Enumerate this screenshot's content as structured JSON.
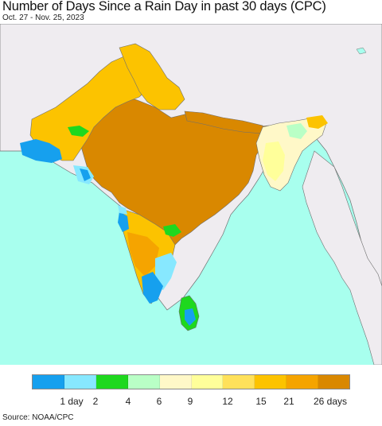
{
  "header": {
    "title": "Number of Days Since a Rain Day in past 30 days (CPC)",
    "subtitle": "Oct. 27 - Nov. 25, 2023"
  },
  "map": {
    "colors": {
      "ocean": "#a8ffee",
      "land_outside": "#efecf0",
      "darkest": "#d98800",
      "orange": "#f5a400",
      "amber": "#fcc300",
      "yellow": "#ffe15a",
      "light_yellow": "#ffff9a",
      "cream": "#fff8c8",
      "pale_green": "#b9ffc6",
      "green": "#1ed81e",
      "cyan": "#87e8ff",
      "blue": "#16a0ee",
      "border": "#6f6f6f"
    }
  },
  "legend": {
    "colors": [
      "#16a0ee",
      "#87e8ff",
      "#1ed81e",
      "#b9ffc6",
      "#fff8c8",
      "#ffff9a",
      "#ffe15a",
      "#fcc300",
      "#f5a400",
      "#d98800"
    ],
    "labels": [
      "1 day",
      "2",
      "4",
      "6",
      "9",
      "12",
      "15",
      "21",
      "26 days"
    ]
  },
  "footer": {
    "source": "Source: NOAA/CPC"
  }
}
